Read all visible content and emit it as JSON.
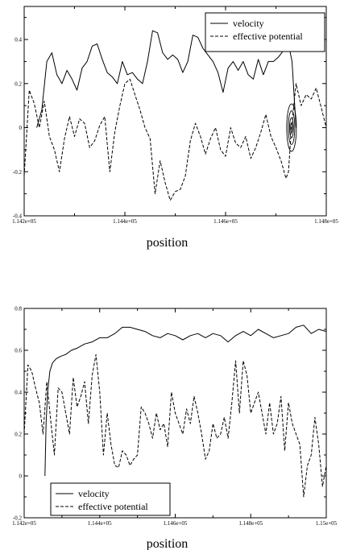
{
  "chart_data": [
    {
      "type": "line",
      "title": "",
      "xlabel": "position",
      "ylabel": "",
      "xlim": [
        114200,
        114800
      ],
      "ylim": [
        -0.4,
        0.55
      ],
      "x_ticks": [
        114200,
        114400,
        114600,
        114800
      ],
      "x_tick_labels": [
        "1.142e+05",
        "1.144e+05",
        "1.146e+05",
        "1.148e+05"
      ],
      "y_ticks": [
        -0.4,
        -0.2,
        0,
        0.2,
        0.4
      ],
      "y_tick_labels": [
        "-0.4",
        "-0.2",
        "0",
        "0.2",
        "0.4"
      ],
      "grid": false,
      "legend_position": "top-right",
      "series": [
        {
          "name": "velocity",
          "style": "solid",
          "x": [
            114225,
            114235,
            114245,
            114255,
            114265,
            114275,
            114285,
            114295,
            114305,
            114315,
            114325,
            114335,
            114345,
            114355,
            114365,
            114375,
            114385,
            114395,
            114405,
            114415,
            114425,
            114435,
            114445,
            114455,
            114465,
            114475,
            114485,
            114495,
            114505,
            114515,
            114525,
            114535,
            114545,
            114555,
            114565,
            114575,
            114585,
            114595,
            114605,
            114615,
            114625,
            114635,
            114645,
            114655,
            114665,
            114675,
            114685,
            114695,
            114705,
            114715,
            114725,
            114732,
            114740
          ],
          "y": [
            0.0,
            0.08,
            0.3,
            0.34,
            0.24,
            0.2,
            0.26,
            0.22,
            0.17,
            0.27,
            0.3,
            0.37,
            0.38,
            0.31,
            0.25,
            0.23,
            0.2,
            0.3,
            0.24,
            0.25,
            0.22,
            0.2,
            0.3,
            0.44,
            0.43,
            0.34,
            0.31,
            0.33,
            0.31,
            0.25,
            0.3,
            0.42,
            0.41,
            0.36,
            0.33,
            0.3,
            0.25,
            0.16,
            0.27,
            0.3,
            0.26,
            0.3,
            0.24,
            0.22,
            0.31,
            0.24,
            0.3,
            0.3,
            0.32,
            0.35,
            0.38,
            0.3,
            0.0
          ]
        },
        {
          "name": "effective potential",
          "style": "dashed",
          "x": [
            114200,
            114210,
            114220,
            114230,
            114240,
            114250,
            114260,
            114270,
            114280,
            114290,
            114300,
            114310,
            114320,
            114330,
            114340,
            114350,
            114360,
            114370,
            114380,
            114390,
            114400,
            114410,
            114420,
            114430,
            114440,
            114450,
            114460,
            114470,
            114480,
            114490,
            114500,
            114510,
            114520,
            114530,
            114540,
            114550,
            114560,
            114570,
            114580,
            114590,
            114600,
            114610,
            114620,
            114630,
            114640,
            114650,
            114660,
            114670,
            114680,
            114690,
            114700,
            114710,
            114720,
            114725,
            114730,
            114740,
            114750,
            114760,
            114770,
            114780,
            114790,
            114800
          ],
          "y": [
            -0.22,
            0.17,
            0.11,
            0.0,
            0.12,
            -0.04,
            -0.1,
            -0.2,
            -0.05,
            0.05,
            -0.04,
            0.04,
            0.02,
            -0.09,
            -0.06,
            0.01,
            0.05,
            -0.2,
            -0.02,
            0.1,
            0.2,
            0.22,
            0.15,
            0.08,
            0.0,
            -0.05,
            -0.3,
            -0.15,
            -0.25,
            -0.33,
            -0.29,
            -0.28,
            -0.22,
            -0.06,
            0.02,
            -0.04,
            -0.12,
            -0.05,
            0.0,
            -0.1,
            -0.13,
            0.0,
            -0.07,
            -0.09,
            -0.04,
            -0.14,
            -0.09,
            -0.02,
            0.06,
            -0.04,
            -0.09,
            -0.15,
            -0.23,
            -0.2,
            -0.02,
            0.2,
            0.1,
            0.15,
            0.13,
            0.18,
            0.09,
            0.0
          ]
        }
      ]
    },
    {
      "type": "line",
      "title": "",
      "xlabel": "position",
      "ylabel": "",
      "xlim": [
        114200,
        115000
      ],
      "ylim": [
        -0.2,
        0.8
      ],
      "x_ticks": [
        114200,
        114400,
        114600,
        114800,
        115000
      ],
      "x_tick_labels": [
        "1.142e+05",
        "1.144e+05",
        "1.146e+05",
        "1.148e+05",
        "1.15e+05"
      ],
      "y_ticks": [
        -0.2,
        0,
        0.2,
        0.4,
        0.6,
        0.8
      ],
      "y_tick_labels": [
        "-0.2",
        "0",
        "0.2",
        "0.4",
        "0.6",
        "0.8"
      ],
      "grid": false,
      "legend_position": "bottom-left",
      "series": [
        {
          "name": "velocity",
          "style": "solid",
          "x": [
            114255,
            114258,
            114262,
            114268,
            114275,
            114285,
            114295,
            114310,
            114325,
            114340,
            114360,
            114380,
            114400,
            114420,
            114440,
            114460,
            114480,
            114500,
            114520,
            114540,
            114560,
            114580,
            114600,
            114620,
            114640,
            114660,
            114680,
            114700,
            114720,
            114740,
            114760,
            114780,
            114800,
            114820,
            114840,
            114860,
            114880,
            114900,
            114920,
            114940,
            114960,
            114980,
            115000
          ],
          "y": [
            0.0,
            0.25,
            0.4,
            0.5,
            0.54,
            0.56,
            0.57,
            0.58,
            0.6,
            0.61,
            0.63,
            0.64,
            0.66,
            0.66,
            0.68,
            0.71,
            0.71,
            0.7,
            0.69,
            0.67,
            0.66,
            0.68,
            0.67,
            0.65,
            0.67,
            0.68,
            0.66,
            0.68,
            0.67,
            0.64,
            0.67,
            0.69,
            0.67,
            0.7,
            0.68,
            0.66,
            0.67,
            0.68,
            0.71,
            0.72,
            0.68,
            0.7,
            0.69
          ]
        },
        {
          "name": "effective potential",
          "style": "dashed",
          "x": [
            114200,
            114210,
            114220,
            114230,
            114240,
            114250,
            114260,
            114270,
            114280,
            114290,
            114300,
            114310,
            114320,
            114330,
            114340,
            114350,
            114360,
            114370,
            114380,
            114390,
            114400,
            114410,
            114420,
            114430,
            114440,
            114450,
            114460,
            114470,
            114480,
            114490,
            114500,
            114510,
            114520,
            114530,
            114540,
            114550,
            114560,
            114570,
            114580,
            114590,
            114600,
            114610,
            114620,
            114630,
            114640,
            114650,
            114660,
            114670,
            114680,
            114690,
            114700,
            114710,
            114720,
            114730,
            114740,
            114750,
            114760,
            114770,
            114780,
            114790,
            114800,
            114810,
            114820,
            114830,
            114840,
            114850,
            114860,
            114870,
            114880,
            114890,
            114900,
            114910,
            114920,
            114930,
            114940,
            114950,
            114960,
            114970,
            114980,
            114990,
            115000
          ],
          "y": [
            0.2,
            0.53,
            0.5,
            0.42,
            0.35,
            0.2,
            0.45,
            0.27,
            0.1,
            0.42,
            0.4,
            0.3,
            0.2,
            0.47,
            0.33,
            0.38,
            0.45,
            0.25,
            0.48,
            0.58,
            0.4,
            0.1,
            0.3,
            0.15,
            0.05,
            0.04,
            0.12,
            0.1,
            0.05,
            0.08,
            0.1,
            0.33,
            0.3,
            0.25,
            0.18,
            0.3,
            0.22,
            0.25,
            0.14,
            0.4,
            0.3,
            0.25,
            0.2,
            0.32,
            0.25,
            0.38,
            0.3,
            0.2,
            0.08,
            0.12,
            0.25,
            0.18,
            0.2,
            0.28,
            0.18,
            0.35,
            0.55,
            0.3,
            0.55,
            0.48,
            0.3,
            0.35,
            0.4,
            0.3,
            0.2,
            0.35,
            0.2,
            0.25,
            0.38,
            0.12,
            0.35,
            0.25,
            0.2,
            0.15,
            -0.1,
            0.05,
            0.1,
            0.28,
            0.15,
            -0.05,
            0.05
          ]
        }
      ]
    }
  ]
}
